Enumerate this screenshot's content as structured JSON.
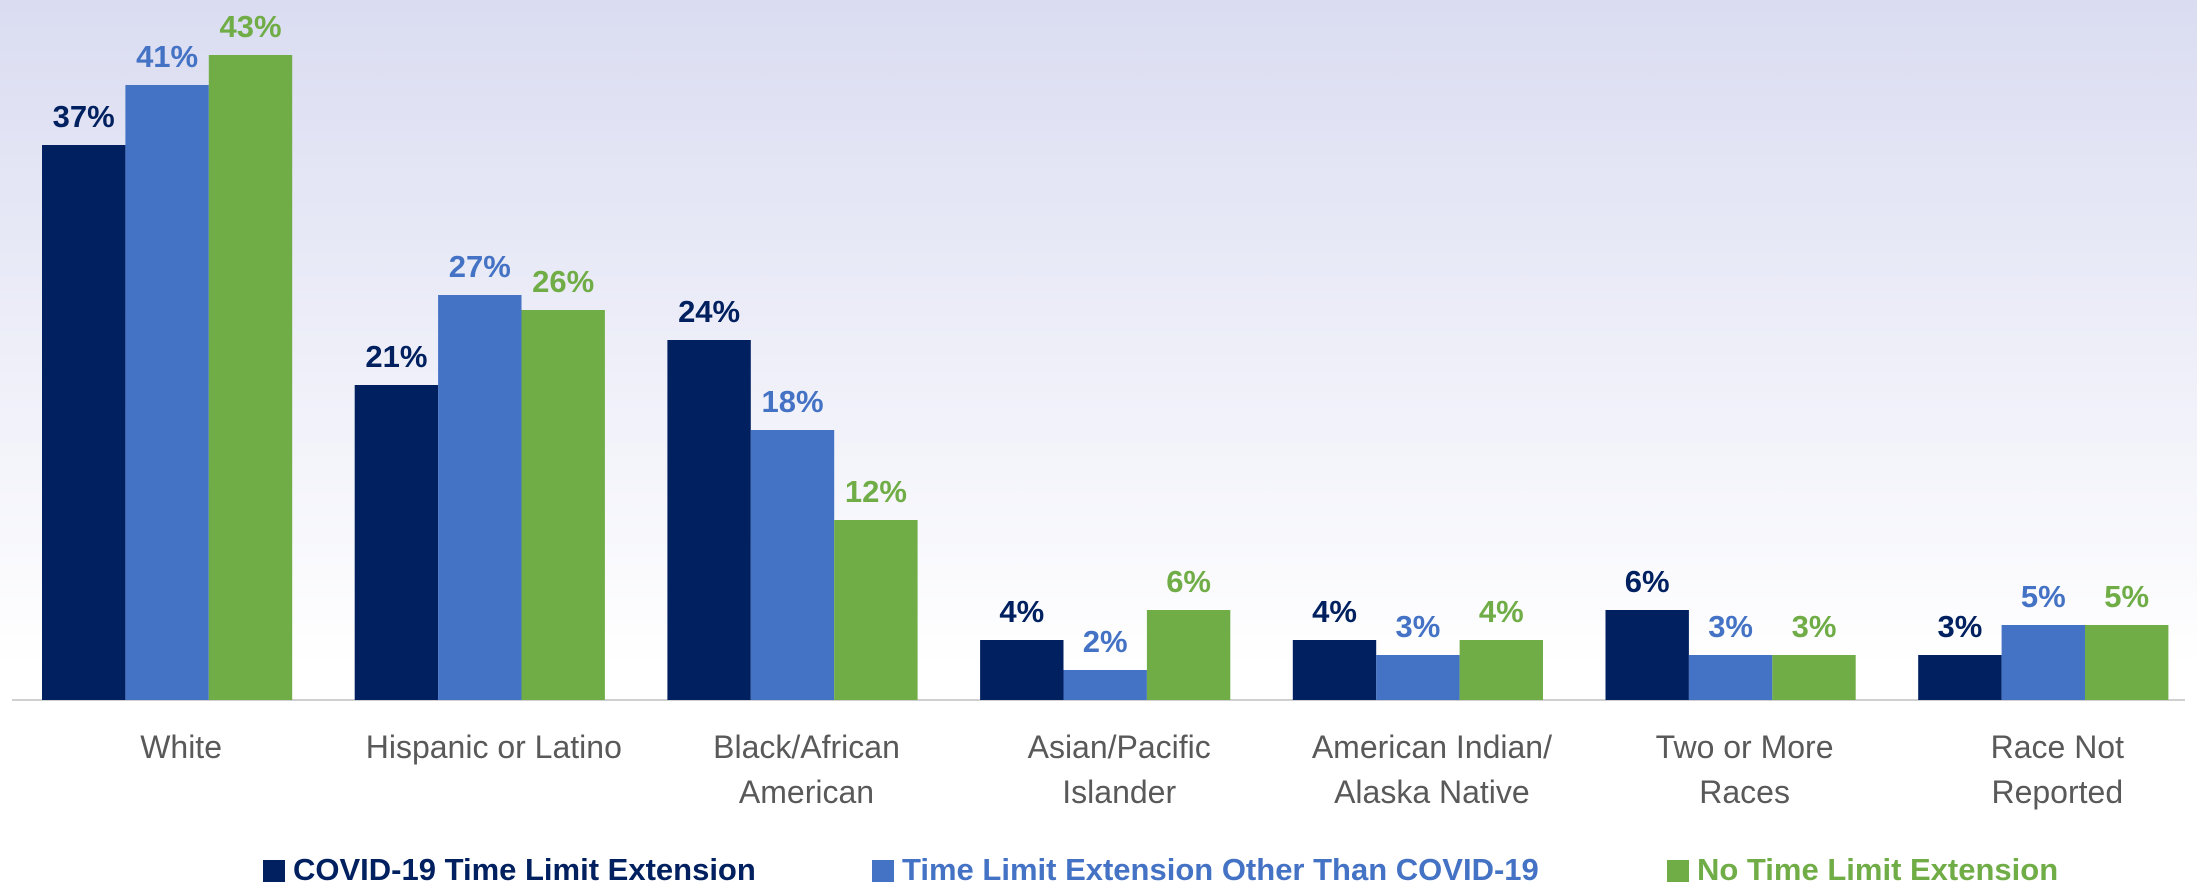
{
  "chart_data": {
    "type": "bar",
    "categories": [
      "White",
      "Hispanic or Latino",
      "Black/African\nAmerican",
      "Asian/Pacific\nIslander",
      "American Indian/\nAlaska Native",
      "Two or More\nRaces",
      "Race Not\nReported"
    ],
    "series": [
      {
        "name": "COVID-19 Time Limit Extension",
        "color": "#002060",
        "values": [
          37,
          21,
          24,
          4,
          4,
          6,
          3
        ],
        "value_labels": [
          "37%",
          "21%",
          "24%",
          "4%",
          "4%",
          "6%",
          "3%"
        ]
      },
      {
        "name": "Time Limit Extension Other Than COVID-19",
        "color": "#4472c4",
        "values": [
          41,
          27,
          18,
          2,
          3,
          3,
          5
        ],
        "value_labels": [
          "41%",
          "27%",
          "18%",
          "2%",
          "3%",
          "3%",
          "5%"
        ]
      },
      {
        "name": "No Time Limit Extension",
        "color": "#70ad47",
        "values": [
          43,
          26,
          12,
          6,
          4,
          3,
          5
        ],
        "value_labels": [
          "43%",
          "26%",
          "12%",
          "6%",
          "4%",
          "3%",
          "5%"
        ]
      }
    ]
  }
}
